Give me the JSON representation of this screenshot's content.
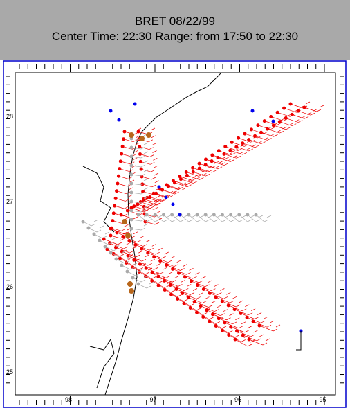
{
  "header": {
    "title": "BRET 08/22/99",
    "subtitle": "Center Time: 22:30  Range: from 17:50 to 22:30"
  },
  "map": {
    "lat_labels": [
      "28",
      "27",
      "26",
      "25"
    ],
    "lon_labels": [
      "98",
      "97",
      "96",
      "95"
    ]
  }
}
